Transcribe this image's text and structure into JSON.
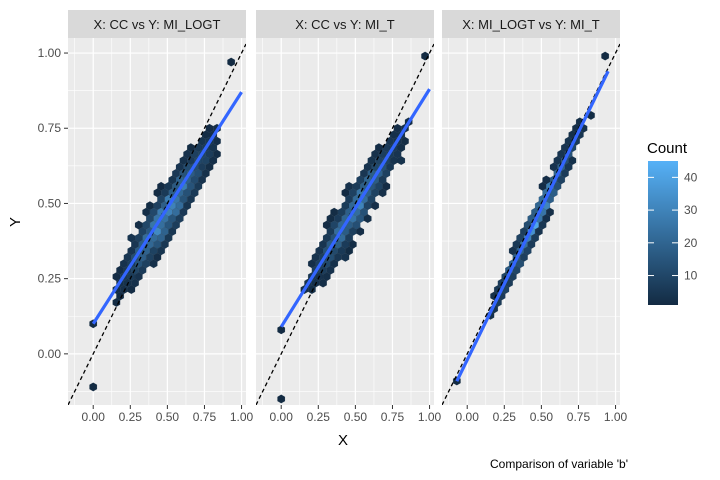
{
  "chart_data": {
    "type": "heatmap",
    "subtype": "hexbin with linear fit and identity line",
    "caption": "Comparison of variable 'b'",
    "xlabel": "X",
    "ylabel": "Y",
    "xlim": [
      -0.17,
      1.03
    ],
    "ylim": [
      -0.17,
      1.05
    ],
    "x_ticks": [
      "0.00",
      "0.25",
      "0.50",
      "0.75",
      "1.00"
    ],
    "y_ticks": [
      "0.00",
      "0.25",
      "0.50",
      "0.75",
      "1.00"
    ],
    "grid": true,
    "legend": {
      "title": "Count",
      "position": "right",
      "range": [
        1,
        45
      ],
      "ticks": [
        "10",
        "20",
        "30",
        "40"
      ],
      "colors": [
        "#132B43",
        "#56B1F7"
      ]
    },
    "colors": {
      "panel_bg": "#EBEBEB",
      "strip_bg": "#D9D9D9",
      "fit_line": "#3366FF",
      "identity_line": "#000000"
    },
    "panels": [
      {
        "title": "X: CC vs Y: MI_LOGT",
        "fit": {
          "slope": 0.77,
          "intercept": 0.1,
          "x_range": [
            0.0,
            1.0
          ]
        },
        "identity_line": true,
        "cloud": {
          "center": [
            0.5,
            0.47
          ],
          "spread_along": 0.28,
          "spread_across": 0.055,
          "slope": 0.77,
          "x_min": 0.15,
          "x_max": 0.97,
          "peak": 40
        },
        "outliers": [
          [
            0.0,
            -0.11
          ],
          [
            0.0,
            0.1
          ],
          [
            0.93,
            0.97
          ]
        ]
      },
      {
        "title": "X: CC vs Y: MI_T",
        "fit": {
          "slope": 0.79,
          "intercept": 0.09,
          "x_range": [
            0.0,
            1.0
          ]
        },
        "identity_line": true,
        "cloud": {
          "center": [
            0.5,
            0.48
          ],
          "spread_along": 0.28,
          "spread_across": 0.05,
          "slope": 0.79,
          "x_min": 0.15,
          "x_max": 0.97,
          "peak": 36
        },
        "outliers": [
          [
            0.0,
            -0.15
          ],
          [
            0.0,
            0.08
          ],
          [
            0.97,
            0.99
          ]
        ]
      },
      {
        "title": "X: MI_LOGT vs Y: MI_T",
        "fit": {
          "slope": 1.01,
          "intercept": -0.02,
          "x_range": [
            -0.07,
            0.95
          ]
        },
        "identity_line": true,
        "cloud": {
          "center": [
            0.47,
            0.45
          ],
          "spread_along": 0.3,
          "spread_across": 0.03,
          "slope": 1.01,
          "x_min": 0.05,
          "x_max": 0.95,
          "peak": 45
        },
        "outliers": [
          [
            -0.07,
            -0.09
          ],
          [
            0.93,
            0.99
          ]
        ]
      }
    ]
  }
}
